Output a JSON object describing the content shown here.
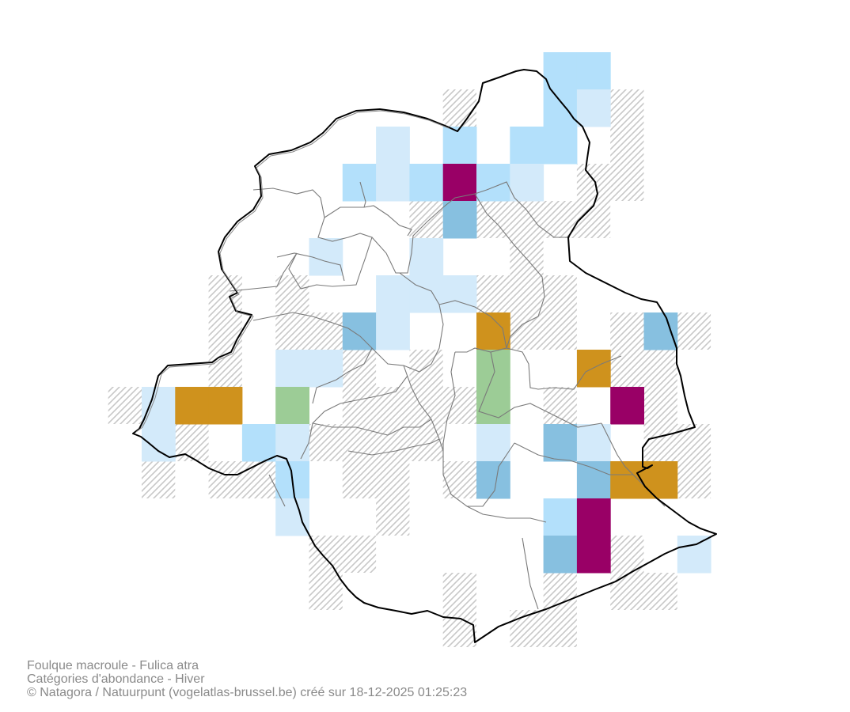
{
  "caption": {
    "line1": "Foulque macroule - Fulica atra",
    "line2": "Catégories d'abondance - Hiver",
    "line3": "© Natagora / Natuurpunt (vogelatlas-brussel.be) créé sur 18-12-2025 01:25:23"
  },
  "legend_colors": {
    "pale_blue": "#d3eafa",
    "light_blue": "#b3e0fb",
    "mid_blue": "#87c0e0",
    "green": "#9ccc96",
    "orange": "#cf921d",
    "magenta": "#990066",
    "hatch": "#c8c8c8",
    "boundary": "#000000",
    "municipality_lines": "#7a7a7a"
  },
  "grid_cells": [
    {
      "col": 12,
      "row": 0,
      "cat": "light_blue"
    },
    {
      "col": 13,
      "row": 0,
      "cat": "light_blue"
    },
    {
      "col": 12,
      "row": 1,
      "cat": "light_blue"
    },
    {
      "col": 13,
      "row": 1,
      "cat": "pale_blue"
    },
    {
      "col": 7,
      "row": 2,
      "cat": "pale_blue"
    },
    {
      "col": 9,
      "row": 2,
      "cat": "light_blue"
    },
    {
      "col": 11,
      "row": 2,
      "cat": "light_blue"
    },
    {
      "col": 12,
      "row": 2,
      "cat": "light_blue"
    },
    {
      "col": 6,
      "row": 3,
      "cat": "light_blue"
    },
    {
      "col": 7,
      "row": 3,
      "cat": "pale_blue"
    },
    {
      "col": 8,
      "row": 3,
      "cat": "light_blue"
    },
    {
      "col": 9,
      "row": 3,
      "cat": "magenta"
    },
    {
      "col": 10,
      "row": 3,
      "cat": "light_blue"
    },
    {
      "col": 11,
      "row": 3,
      "cat": "pale_blue"
    },
    {
      "col": 9,
      "row": 4,
      "cat": "mid_blue"
    },
    {
      "col": 5,
      "row": 5,
      "cat": "pale_blue"
    },
    {
      "col": 8,
      "row": 5,
      "cat": "pale_blue"
    },
    {
      "col": 7,
      "row": 6,
      "cat": "pale_blue"
    },
    {
      "col": 8,
      "row": 6,
      "cat": "pale_blue"
    },
    {
      "col": 9,
      "row": 6,
      "cat": "pale_blue"
    },
    {
      "col": 6,
      "row": 7,
      "cat": "mid_blue"
    },
    {
      "col": 7,
      "row": 7,
      "cat": "pale_blue"
    },
    {
      "col": 10,
      "row": 7,
      "cat": "orange"
    },
    {
      "col": 15,
      "row": 7,
      "cat": "mid_blue"
    },
    {
      "col": 4,
      "row": 8,
      "cat": "pale_blue"
    },
    {
      "col": 5,
      "row": 8,
      "cat": "pale_blue"
    },
    {
      "col": 10,
      "row": 8,
      "cat": "green"
    },
    {
      "col": 13,
      "row": 8,
      "cat": "orange"
    },
    {
      "col": 0,
      "row": 9,
      "cat": "pale_blue"
    },
    {
      "col": 1,
      "row": 9,
      "cat": "orange"
    },
    {
      "col": 2,
      "row": 9,
      "cat": "orange"
    },
    {
      "col": 4,
      "row": 9,
      "cat": "green"
    },
    {
      "col": 10,
      "row": 9,
      "cat": "green"
    },
    {
      "col": 14,
      "row": 9,
      "cat": "magenta"
    },
    {
      "col": 0,
      "row": 10,
      "cat": "pale_blue"
    },
    {
      "col": 3,
      "row": 10,
      "cat": "light_blue"
    },
    {
      "col": 4,
      "row": 10,
      "cat": "pale_blue"
    },
    {
      "col": 10,
      "row": 10,
      "cat": "pale_blue"
    },
    {
      "col": 12,
      "row": 10,
      "cat": "mid_blue"
    },
    {
      "col": 13,
      "row": 10,
      "cat": "pale_blue"
    },
    {
      "col": 4,
      "row": 11,
      "cat": "light_blue"
    },
    {
      "col": 10,
      "row": 11,
      "cat": "mid_blue"
    },
    {
      "col": 13,
      "row": 11,
      "cat": "mid_blue"
    },
    {
      "col": 14,
      "row": 11,
      "cat": "orange"
    },
    {
      "col": 15,
      "row": 11,
      "cat": "orange"
    },
    {
      "col": 4,
      "row": 12,
      "cat": "pale_blue"
    },
    {
      "col": 12,
      "row": 12,
      "cat": "light_blue"
    },
    {
      "col": 13,
      "row": 12,
      "cat": "magenta"
    },
    {
      "col": 12,
      "row": 13,
      "cat": "mid_blue"
    },
    {
      "col": 13,
      "row": 13,
      "cat": "magenta"
    },
    {
      "col": 16,
      "row": 13,
      "cat": "pale_blue"
    }
  ],
  "hatched_cells": [
    [
      9,
      1
    ],
    [
      14,
      1
    ],
    [
      14,
      2
    ],
    [
      13,
      3
    ],
    [
      14,
      3
    ],
    [
      8,
      4
    ],
    [
      10,
      4
    ],
    [
      11,
      4
    ],
    [
      12,
      4
    ],
    [
      13,
      4
    ],
    [
      11,
      5
    ],
    [
      2,
      6
    ],
    [
      4,
      6
    ],
    [
      10,
      6
    ],
    [
      11,
      6
    ],
    [
      12,
      6
    ],
    [
      2,
      7
    ],
    [
      4,
      7
    ],
    [
      5,
      7
    ],
    [
      11,
      7
    ],
    [
      12,
      7
    ],
    [
      14,
      7
    ],
    [
      16,
      7
    ],
    [
      2,
      8
    ],
    [
      6,
      8
    ],
    [
      8,
      8
    ],
    [
      14,
      8
    ],
    [
      15,
      8
    ],
    [
      -1,
      9
    ],
    [
      6,
      9
    ],
    [
      7,
      9
    ],
    [
      8,
      9
    ],
    [
      9,
      9
    ],
    [
      12,
      9
    ],
    [
      15,
      9
    ],
    [
      1,
      10
    ],
    [
      5,
      10
    ],
    [
      6,
      10
    ],
    [
      7,
      10
    ],
    [
      8,
      10
    ],
    [
      15,
      10
    ],
    [
      16,
      10
    ],
    [
      0,
      11
    ],
    [
      2,
      11
    ],
    [
      3,
      11
    ],
    [
      6,
      11
    ],
    [
      7,
      11
    ],
    [
      9,
      11
    ],
    [
      16,
      11
    ],
    [
      7,
      12
    ],
    [
      5,
      13
    ],
    [
      6,
      13
    ],
    [
      14,
      13
    ],
    [
      5,
      14
    ],
    [
      9,
      14
    ],
    [
      12,
      14
    ],
    [
      14,
      14
    ],
    [
      15,
      14
    ],
    [
      9,
      15
    ],
    [
      11,
      15
    ],
    [
      12,
      15
    ]
  ]
}
